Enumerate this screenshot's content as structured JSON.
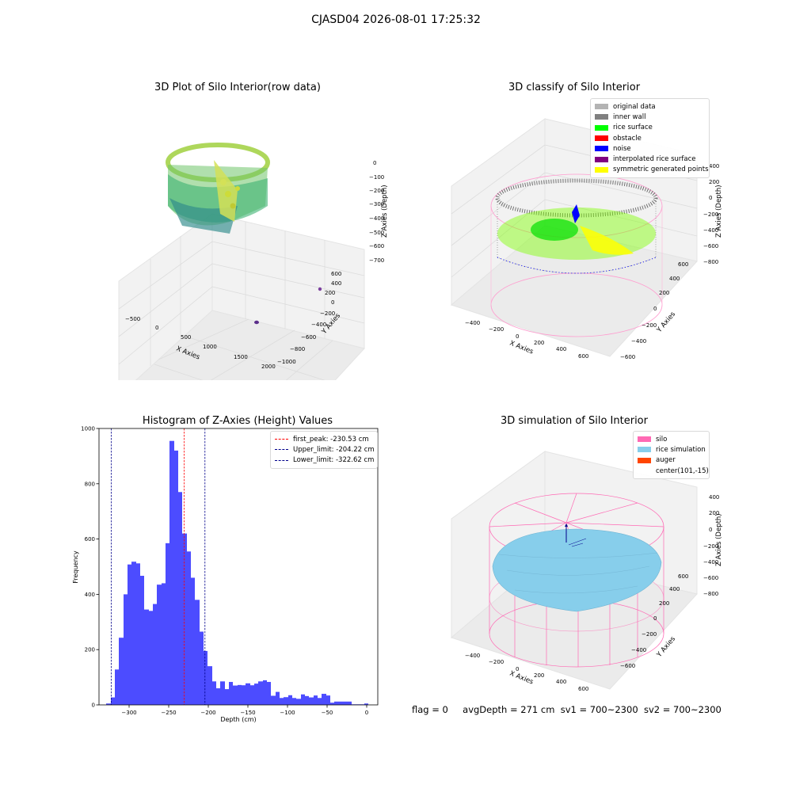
{
  "suptitle": "CJASD04 2026-08-01 17:25:32",
  "panels": {
    "raw": {
      "title": "3D Plot of Silo Interior(row data)",
      "xlabel": "X Axies",
      "ylabel": "Y Axies",
      "zlabel": "Z Axies (Depth)",
      "xticks": [
        "−500",
        "0",
        "500",
        "1000",
        "1500",
        "2000"
      ],
      "yticks": [
        "−1000",
        "−800",
        "−600",
        "−400",
        "−200",
        "0",
        "200",
        "400",
        "600"
      ],
      "zticks": [
        "0",
        "−100",
        "−200",
        "−300",
        "−400",
        "−500",
        "−600",
        "−700"
      ]
    },
    "classify": {
      "title": "3D classify of Silo Interior",
      "xlabel": "X Axies",
      "ylabel": "Y Axies",
      "zlabel": "Z Axies (Depth)",
      "xticks": [
        "−400",
        "−200",
        "0",
        "200",
        "400",
        "600"
      ],
      "yticks": [
        "−600",
        "−400",
        "−200",
        "0",
        "200",
        "400",
        "600"
      ],
      "zticks": [
        "400",
        "200",
        "0",
        "−200",
        "−400",
        "−600",
        "−800"
      ],
      "legend": [
        {
          "label": "original data",
          "color": "#b3b3b3"
        },
        {
          "label": "inner wall",
          "color": "#808080"
        },
        {
          "label": "rice surface",
          "color": "#00ff00"
        },
        {
          "label": "obstacle",
          "color": "#ff0000"
        },
        {
          "label": "noise",
          "color": "#0000ff"
        },
        {
          "label": "interpolated rice surface",
          "color": "#800080"
        },
        {
          "label": "symmetric generated points",
          "color": "#ffff00"
        }
      ]
    },
    "simulation": {
      "title": "3D simulation of Silo Interior",
      "xlabel": "X Axies",
      "ylabel": "Y Axies",
      "zlabel": "Z Axies (Depth)",
      "xticks": [
        "−400",
        "−200",
        "0",
        "200",
        "400",
        "600"
      ],
      "yticks": [
        "−600",
        "−400",
        "−200",
        "0",
        "200",
        "400",
        "600"
      ],
      "zticks": [
        "400",
        "200",
        "0",
        "−200",
        "−400",
        "−600",
        "−800"
      ],
      "legend": [
        {
          "label": "silo",
          "color": "#ff69b4"
        },
        {
          "label": "rice simulation",
          "color": "#87ceeb"
        },
        {
          "label": "auger",
          "color": "#ff4500"
        },
        {
          "label": "center(101,-15)",
          "color": ""
        }
      ]
    }
  },
  "chart_data": {
    "type": "bar",
    "title": "Histogram of Z-Axies (Height) Values",
    "xlabel": "Depth (cm)",
    "ylabel": "Frequency",
    "xlim": [
      -338,
      14
    ],
    "ylim": [
      0,
      1000
    ],
    "xticks": [
      -300,
      -250,
      -200,
      -150,
      -100,
      -50,
      0
    ],
    "xtick_labels": [
      "−300",
      "−250",
      "−200",
      "−150",
      "−100",
      "−50",
      "0"
    ],
    "yticks": [
      0,
      200,
      400,
      600,
      800,
      1000
    ],
    "bar_color": "#0000ff",
    "bins": [
      {
        "x0": -329,
        "x1": -323,
        "v": 5
      },
      {
        "x0": -323,
        "x1": -318,
        "v": 27
      },
      {
        "x0": -318,
        "x1": -313,
        "v": 128
      },
      {
        "x0": -313,
        "x1": -307,
        "v": 243
      },
      {
        "x0": -307,
        "x1": -302,
        "v": 400
      },
      {
        "x0": -302,
        "x1": -297,
        "v": 508
      },
      {
        "x0": -297,
        "x1": -291,
        "v": 518
      },
      {
        "x0": -291,
        "x1": -286,
        "v": 512
      },
      {
        "x0": -286,
        "x1": -281,
        "v": 467
      },
      {
        "x0": -281,
        "x1": -275,
        "v": 345
      },
      {
        "x0": -275,
        "x1": -270,
        "v": 340
      },
      {
        "x0": -270,
        "x1": -265,
        "v": 365
      },
      {
        "x0": -265,
        "x1": -259,
        "v": 435
      },
      {
        "x0": -259,
        "x1": -254,
        "v": 440
      },
      {
        "x0": -254,
        "x1": -249,
        "v": 585
      },
      {
        "x0": -249,
        "x1": -243,
        "v": 955
      },
      {
        "x0": -243,
        "x1": -238,
        "v": 920
      },
      {
        "x0": -238,
        "x1": -233,
        "v": 770
      },
      {
        "x0": -233,
        "x1": -227,
        "v": 620
      },
      {
        "x0": -227,
        "x1": -222,
        "v": 555
      },
      {
        "x0": -222,
        "x1": -217,
        "v": 460
      },
      {
        "x0": -217,
        "x1": -211,
        "v": 380
      },
      {
        "x0": -211,
        "x1": -206,
        "v": 265
      },
      {
        "x0": -206,
        "x1": -201,
        "v": 195
      },
      {
        "x0": -201,
        "x1": -195,
        "v": 140
      },
      {
        "x0": -195,
        "x1": -190,
        "v": 85
      },
      {
        "x0": -190,
        "x1": -185,
        "v": 60
      },
      {
        "x0": -185,
        "x1": -179,
        "v": 85
      },
      {
        "x0": -179,
        "x1": -174,
        "v": 57
      },
      {
        "x0": -174,
        "x1": -169,
        "v": 83
      },
      {
        "x0": -169,
        "x1": -163,
        "v": 70
      },
      {
        "x0": -163,
        "x1": -158,
        "v": 72
      },
      {
        "x0": -158,
        "x1": -153,
        "v": 71
      },
      {
        "x0": -153,
        "x1": -147,
        "v": 78
      },
      {
        "x0": -147,
        "x1": -142,
        "v": 71
      },
      {
        "x0": -142,
        "x1": -137,
        "v": 77
      },
      {
        "x0": -137,
        "x1": -131,
        "v": 85
      },
      {
        "x0": -131,
        "x1": -126,
        "v": 89
      },
      {
        "x0": -126,
        "x1": -121,
        "v": 83
      },
      {
        "x0": -121,
        "x1": -115,
        "v": 33
      },
      {
        "x0": -115,
        "x1": -110,
        "v": 47
      },
      {
        "x0": -110,
        "x1": -105,
        "v": 25
      },
      {
        "x0": -105,
        "x1": -99,
        "v": 28
      },
      {
        "x0": -99,
        "x1": -94,
        "v": 35
      },
      {
        "x0": -94,
        "x1": -89,
        "v": 25
      },
      {
        "x0": -89,
        "x1": -83,
        "v": 22
      },
      {
        "x0": -83,
        "x1": -78,
        "v": 38
      },
      {
        "x0": -78,
        "x1": -73,
        "v": 32
      },
      {
        "x0": -73,
        "x1": -67,
        "v": 27
      },
      {
        "x0": -67,
        "x1": -62,
        "v": 34
      },
      {
        "x0": -62,
        "x1": -57,
        "v": 25
      },
      {
        "x0": -57,
        "x1": -51,
        "v": 40
      },
      {
        "x0": -51,
        "x1": -46,
        "v": 34
      },
      {
        "x0": -46,
        "x1": -41,
        "v": 8
      },
      {
        "x0": -41,
        "x1": -35,
        "v": 12
      },
      {
        "x0": -35,
        "x1": -30,
        "v": 12
      },
      {
        "x0": -30,
        "x1": -25,
        "v": 12
      },
      {
        "x0": -25,
        "x1": -19,
        "v": 12
      },
      {
        "x0": -19,
        "x1": -14,
        "v": 2
      },
      {
        "x0": -14,
        "x1": -9,
        "v": 2
      },
      {
        "x0": -9,
        "x1": -3,
        "v": 2
      },
      {
        "x0": -3,
        "x1": 2,
        "v": 5
      }
    ],
    "vlines": [
      {
        "label": "first_peak: -230.53 cm",
        "x": -230.53,
        "color": "#ff0000"
      },
      {
        "label": "Upper_limit: -204.22 cm",
        "x": -204.22,
        "color": "#00008b"
      },
      {
        "label": "Lower_limit: -322.62 cm",
        "x": -322.62,
        "color": "#00008b"
      }
    ],
    "legend_position": "top-right"
  },
  "status": {
    "flag": "flag = 0",
    "avg": "avgDepth = 271 cm",
    "sv1": "sv1 = 700~2300",
    "sv2": "sv2 = 700~2300"
  }
}
